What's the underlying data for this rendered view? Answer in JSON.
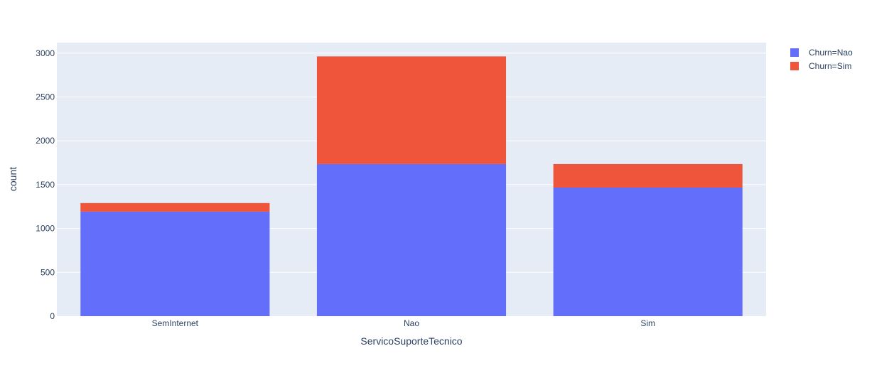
{
  "chart_data": {
    "type": "bar",
    "barmode": "stack",
    "categories": [
      "SemInternet",
      "Nao",
      "Sim"
    ],
    "series": [
      {
        "name": "Churn=Nao",
        "color": "#636efa",
        "values": [
          1192,
          1735,
          1467
        ]
      },
      {
        "name": "Churn=Sim",
        "color": "#ef553b",
        "values": [
          98,
          1228,
          268
        ]
      }
    ],
    "xlabel": "ServicoSuporteTecnico",
    "ylabel": "count",
    "ylim": [
      0,
      3120
    ],
    "yticks": [
      0,
      500,
      1000,
      1500,
      2000,
      2500,
      3000
    ],
    "grid": true,
    "legend_position": "top-right",
    "plot_background": "#e5ecf6"
  }
}
